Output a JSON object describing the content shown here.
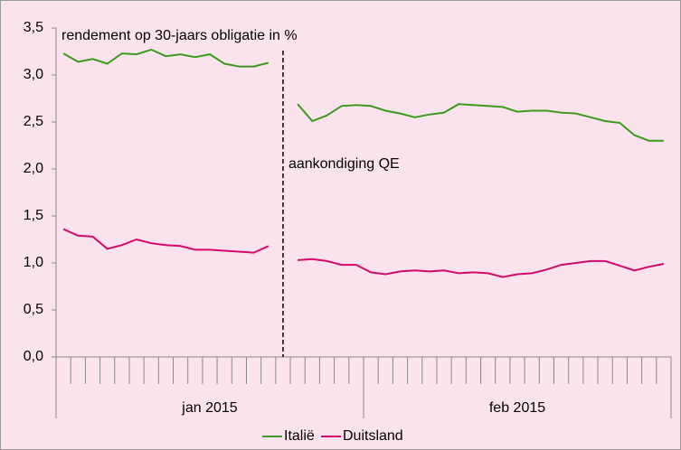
{
  "chart_data": {
    "type": "line",
    "title": "rendement op 30-jaars obligatie in %",
    "categories": [
      null,
      null,
      null,
      null,
      null,
      null,
      null,
      null,
      null,
      null,
      null,
      null,
      null,
      null,
      null,
      null,
      null,
      null,
      null,
      null,
      null,
      null,
      null,
      null,
      null,
      null,
      null,
      null,
      null,
      null,
      null,
      null,
      null,
      null,
      null,
      null,
      null,
      null,
      null,
      null,
      null,
      null
    ],
    "x_groups": [
      {
        "label": "jan 2015",
        "count": 21
      },
      {
        "label": "feb 2015",
        "count": 21
      }
    ],
    "series": [
      {
        "name": "Italië",
        "color": "#3c9a1e",
        "values": [
          3.23,
          3.14,
          3.17,
          3.12,
          3.23,
          3.22,
          3.27,
          3.2,
          3.22,
          3.19,
          3.22,
          3.12,
          3.09,
          3.09,
          3.13,
          null,
          2.69,
          2.51,
          2.57,
          2.67,
          2.68,
          2.67,
          2.62,
          2.59,
          2.55,
          2.58,
          2.6,
          2.69,
          2.68,
          2.67,
          2.66,
          2.61,
          2.62,
          2.62,
          2.6,
          2.59,
          2.55,
          2.51,
          2.49,
          2.36,
          2.3,
          2.3
        ]
      },
      {
        "name": "Duitsland",
        "color": "#d6086a",
        "values": [
          1.36,
          1.29,
          1.28,
          1.15,
          1.19,
          1.25,
          1.21,
          1.19,
          1.18,
          1.14,
          1.14,
          1.13,
          1.12,
          1.11,
          1.18,
          null,
          1.03,
          1.04,
          1.02,
          0.98,
          0.98,
          0.9,
          0.88,
          0.91,
          0.92,
          0.91,
          0.92,
          0.89,
          0.9,
          0.89,
          0.85,
          0.88,
          0.89,
          0.93,
          0.98,
          1.0,
          1.02,
          1.02,
          0.97,
          0.92,
          0.96,
          0.99
        ]
      }
    ],
    "event": {
      "label": "aankondiging QE",
      "category_index": 15
    },
    "ylim": [
      0,
      3.5
    ],
    "yticks": [
      {
        "value": 0,
        "label": "0,0"
      },
      {
        "value": 0.5,
        "label": "0,5"
      },
      {
        "value": 1,
        "label": "1,0"
      },
      {
        "value": 1.5,
        "label": "1,5"
      },
      {
        "value": 2,
        "label": "2,0"
      },
      {
        "value": 2.5,
        "label": "2,5"
      },
      {
        "value": 3,
        "label": "3,0"
      },
      {
        "value": 3.5,
        "label": "3,5"
      }
    ],
    "legend": "bottom"
  }
}
